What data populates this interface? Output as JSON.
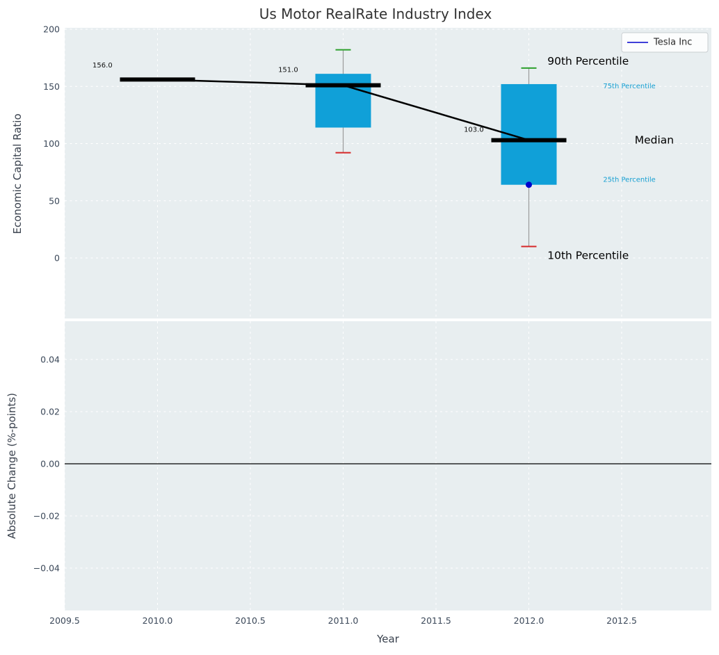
{
  "title": "Us Motor RealRate Industry Index",
  "legend": {
    "position": "upper right",
    "items": [
      {
        "label": "Tesla Inc",
        "color": "#0000cc"
      }
    ]
  },
  "colors": {
    "plot_bg": "#e8eef0",
    "grid": "#ffffff",
    "box_fill": "#10a0d8",
    "median": "#000000",
    "whisker": "#9b9b9b",
    "cap_top": "#2ca02c",
    "cap_bottom": "#d62728",
    "tesla_dot": "#0000cc",
    "annotation_small": "#169fd2",
    "annotation_large": "#000000",
    "zero_line": "#000000",
    "title": "#323232"
  },
  "chart_data": [
    {
      "type": "boxplot",
      "title": "Us Motor RealRate Industry Index",
      "xlabel": "Year",
      "ylabel": "Economic Capital Ratio",
      "xlim": [
        2009.5,
        2012.983
      ],
      "ylim": [
        -54,
        201
      ],
      "grid": true,
      "legend_position": "upper right",
      "x_ticks": [
        2009.5,
        2010.0,
        2010.5,
        2011.0,
        2011.5,
        2012.0,
        2012.5
      ],
      "x_tick_labels": [
        "2009.5",
        "2010.0",
        "2010.5",
        "2011.0",
        "2011.5",
        "2012.0",
        "2012.5"
      ],
      "y_ticks": [
        0,
        50,
        100,
        150,
        200
      ],
      "y_tick_labels": [
        "0",
        "50",
        "100",
        "150",
        "200"
      ],
      "boxes": [
        {
          "year": 2010,
          "median": 156.0,
          "label": "156.0",
          "label_x": 2009.65,
          "label_y": 168
        },
        {
          "year": 2011,
          "median": 151.0,
          "label": "151.0",
          "label_x": 2010.65,
          "label_y": 164,
          "p90": 182,
          "p75": 161,
          "p25": 114,
          "p10": 92
        },
        {
          "year": 2012,
          "median": 103.0,
          "label": "103.0",
          "label_x": 2011.65,
          "label_y": 112,
          "p90": 166,
          "p75": 152,
          "p25": 64,
          "p10": 10,
          "tesla_inc": 64
        }
      ],
      "median_line": {
        "name": "Median",
        "x": [
          2010,
          2011,
          2012
        ],
        "values": [
          156.0,
          151.0,
          103.0
        ]
      },
      "annotations": [
        {
          "text": "90th Percentile",
          "x": 2012.1,
          "y": 172,
          "style": "large"
        },
        {
          "text": "75th Percentile",
          "x": 2012.4,
          "y": 150,
          "style": "small"
        },
        {
          "text": "Median",
          "x": 2012.57,
          "y": 103,
          "style": "large"
        },
        {
          "text": "25th Percentile",
          "x": 2012.4,
          "y": 68,
          "style": "small"
        },
        {
          "text": "10th Percentile",
          "x": 2012.1,
          "y": 2,
          "style": "large"
        }
      ]
    },
    {
      "type": "line",
      "xlabel": "Year",
      "ylabel": "Absolute Change (%-points)",
      "xlim": [
        2009.5,
        2012.983
      ],
      "ylim": [
        -0.0563,
        0.0547
      ],
      "grid": true,
      "y_ticks": [
        0.04,
        0.02,
        0.0,
        -0.02,
        -0.04
      ],
      "y_tick_labels": [
        "0.04",
        "0.02",
        "0.00",
        "−0.02",
        "−0.04"
      ],
      "zero_line": 0.0,
      "series": []
    }
  ]
}
